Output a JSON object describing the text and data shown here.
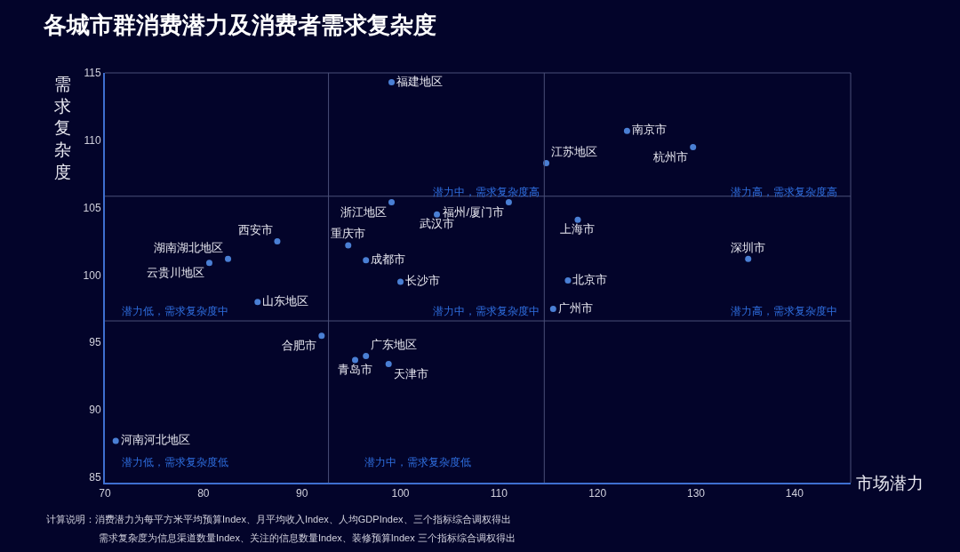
{
  "chart_data": {
    "type": "scatter",
    "title": "各城市群消费潜力及消费者需求复杂度",
    "xlabel": "市场潜力",
    "ylabel": "需求复杂度",
    "xlim": [
      70,
      145.7
    ],
    "ylim": [
      84.6,
      115
    ],
    "xticks": [
      70,
      80,
      90,
      100,
      110,
      120,
      130,
      140
    ],
    "yticks": [
      85,
      90,
      95,
      100,
      105,
      110,
      115
    ],
    "grid": false,
    "legend": false,
    "marker": "circle",
    "series": [
      {
        "name": "福建地区",
        "color": "#4a7fd4",
        "x": [
          99.1
        ],
        "values": [
          114.3
        ]
      },
      {
        "name": "南京市",
        "color": "#4a7fd4",
        "x": [
          123.0
        ],
        "values": [
          110.7
        ]
      },
      {
        "name": "杭州市",
        "color": "#4a7fd4",
        "x": [
          129.7
        ],
        "values": [
          109.5
        ]
      },
      {
        "name": "江苏地区",
        "color": "#4a7fd4",
        "x": [
          114.8
        ],
        "values": [
          108.3
        ]
      },
      {
        "name": "浙江地区",
        "color": "#4a7fd4",
        "x": [
          99.1
        ],
        "values": [
          105.4
        ]
      },
      {
        "name": "福州/厦门市",
        "color": "#4a7fd4",
        "x": [
          111.0
        ],
        "values": [
          105.4
        ]
      },
      {
        "name": "武汉市",
        "color": "#4a7fd4",
        "x": [
          103.7
        ],
        "values": [
          104.5
        ]
      },
      {
        "name": "重庆市",
        "color": "#4a7fd4",
        "x": [
          94.7
        ],
        "values": [
          102.2
        ]
      },
      {
        "name": "成都市",
        "color": "#4a7fd4",
        "x": [
          96.5
        ],
        "values": [
          101.1
        ]
      },
      {
        "name": "长沙市",
        "color": "#4a7fd4",
        "x": [
          100.0
        ],
        "values": [
          99.5
        ]
      },
      {
        "name": "西安市",
        "color": "#4a7fd4",
        "x": [
          87.5
        ],
        "values": [
          102.5
        ]
      },
      {
        "name": "湖南湖北地区",
        "color": "#4a7fd4",
        "x": [
          82.5
        ],
        "values": [
          101.2
        ]
      },
      {
        "name": "云贵川地区",
        "color": "#4a7fd4",
        "x": [
          80.6
        ],
        "values": [
          100.9
        ]
      },
      {
        "name": "山东地区",
        "color": "#4a7fd4",
        "x": [
          85.5
        ],
        "values": [
          98.0
        ]
      },
      {
        "name": "上海市",
        "color": "#4a7fd4",
        "x": [
          118.0
        ],
        "values": [
          104.1
        ]
      },
      {
        "name": "深圳市",
        "color": "#4a7fd4",
        "x": [
          135.3
        ],
        "values": [
          101.2
        ]
      },
      {
        "name": "北京市",
        "color": "#4a7fd4",
        "x": [
          117.0
        ],
        "values": [
          99.6
        ]
      },
      {
        "name": "广州市",
        "color": "#4a7fd4",
        "x": [
          115.5
        ],
        "values": [
          97.5
        ]
      },
      {
        "name": "合肥市",
        "color": "#4a7fd4",
        "x": [
          92.0
        ],
        "values": [
          95.5
        ]
      },
      {
        "name": "广东地区",
        "color": "#4a7fd4",
        "x": [
          96.5
        ],
        "values": [
          94.0
        ]
      },
      {
        "name": "青岛市",
        "color": "#4a7fd4",
        "x": [
          95.4
        ],
        "values": [
          93.7
        ]
      },
      {
        "name": "天津市",
        "color": "#4a7fd4",
        "x": [
          98.8
        ],
        "values": [
          93.4
        ]
      },
      {
        "name": "河南河北地区",
        "color": "#4a7fd4",
        "x": [
          71.1
        ],
        "values": [
          87.7
        ]
      }
    ],
    "ref_lines": [
      {
        "axis": "x",
        "value": 92.7,
        "color": "#4a4f78"
      },
      {
        "axis": "x",
        "value": 114.6,
        "color": "#4a4f78"
      },
      {
        "axis": "y",
        "value": 105.85,
        "color": "#4a4f78"
      },
      {
        "axis": "y",
        "value": 96.6,
        "color": "#4a4f78"
      }
    ],
    "annotations": [
      "潜力中，需求复杂度高",
      "潜力高，需求复杂度高",
      "潜力低，需求复杂度中",
      "潜力中，需求复杂度中",
      "潜力高，需求复杂度中",
      "潜力低，需求复杂度低",
      "潜力中，需求复杂度低",
      "计算说明：消费潜力为每平方米平均预算Index、月平均收入Index、人均GDPIndex、三个指标综合调权得出",
      "需求复杂度为信息渠道数量Index、关注的信息数量Index、装修预算Index 三个指标综合调权得出"
    ]
  }
}
